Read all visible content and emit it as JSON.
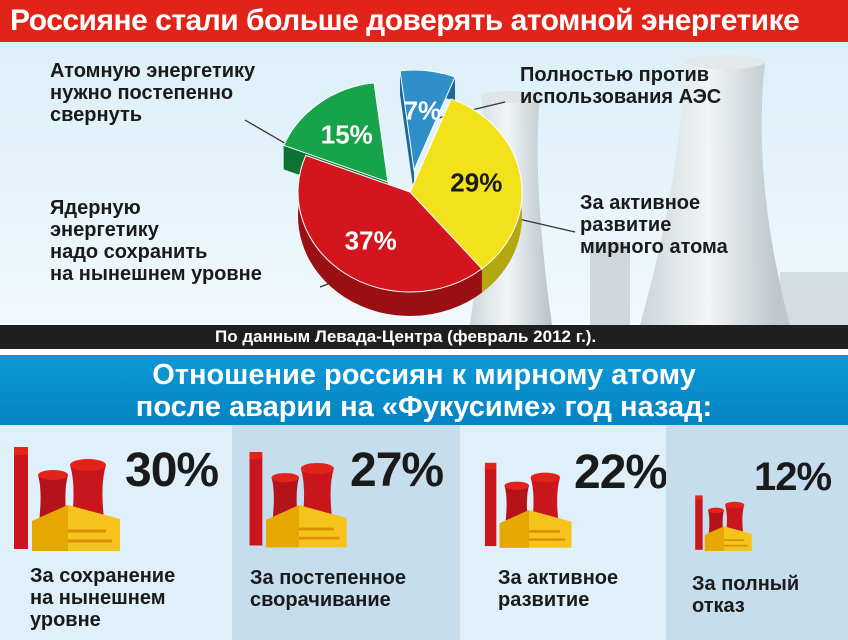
{
  "header": {
    "title": "Россияне стали больше доверять атомной энергетике"
  },
  "source": "По данным Левада-Центра (февраль 2012 г.).",
  "lower_title": "Отношение россиян к мирному атому\nпосле аварии на «Фукусиме» год назад:",
  "colors": {
    "red": "#e2231a",
    "blue_band": "#0b9ad6",
    "yellow": "#f2e21b",
    "green": "#17a34a",
    "teal": "#2f8fc9",
    "dark_red": "#c8161c"
  },
  "chart_data": [
    {
      "type": "pie",
      "categories": [
        "Полностью против использования АЭС",
        "За активное развитие мирного атома",
        "Ядерную энергетику надо сохранить на нынешнем уровне",
        "Атомную энергетику нужно постепенно свернуть"
      ],
      "values": [
        7,
        29,
        37,
        15
      ],
      "value_labels": [
        "7%",
        "29%",
        "37%",
        "15%"
      ],
      "slice_colors": [
        "#2f8fc9",
        "#f2e21b",
        "#d3161d",
        "#17a34a"
      ],
      "label_text": {
        "against": "Полностью против\nиспользования АЭС",
        "active": "За активное\nразвитие\nмирного атома",
        "keep": "Ядерную\nэнергетику\nнадо сохранить\nна нынешнем уровне",
        "wind_down": "Атомную энергетику\nнужно постепенно\nсвернуть"
      },
      "legend": "none"
    },
    {
      "type": "bar",
      "categories": [
        "За сохранение\nна нынешнем\nуровне",
        "За постепенное\nсворачивание",
        "За активное\nразвитие",
        "За полный\nотказ"
      ],
      "values": [
        30,
        27,
        22,
        12
      ],
      "value_labels": [
        "30%",
        "27%",
        "22%",
        "12%"
      ],
      "note": "values shown by icon size",
      "legend": "none"
    }
  ]
}
